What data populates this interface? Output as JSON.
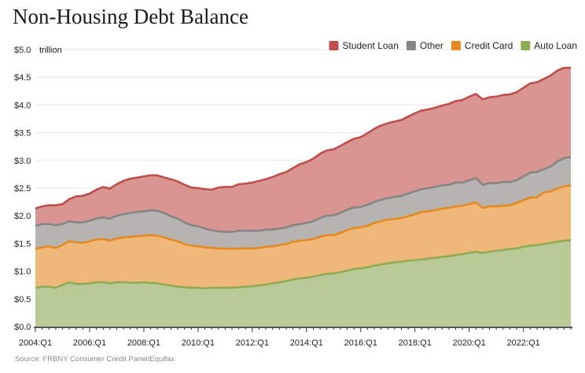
{
  "title": "Non-Housing Debt Balance",
  "source": "Source: FRBNY Consumer Credit Panel/Equifax",
  "chart_data": {
    "type": "area",
    "stacked": true,
    "unit_label": "trillion",
    "ylim": [
      0,
      5.0
    ],
    "y_ticks": [
      "$0.0",
      "$0.5",
      "$1.0",
      "$1.5",
      "$2.0",
      "$2.5",
      "$3.0",
      "$3.5",
      "$4.0",
      "$4.5",
      "$5.0"
    ],
    "y_tick_values": [
      0,
      0.5,
      1.0,
      1.5,
      2.0,
      2.5,
      3.0,
      3.5,
      4.0,
      4.5,
      5.0
    ],
    "x_ticks": [
      "2004:Q1",
      "2006:Q1",
      "2008:Q1",
      "2010:Q1",
      "2012:Q1",
      "2014:Q1",
      "2016:Q1",
      "2018:Q1",
      "2020:Q1",
      "2022:Q1"
    ],
    "x_tick_index": [
      0,
      8,
      16,
      24,
      32,
      40,
      48,
      56,
      64,
      72
    ],
    "grid": "horizontal",
    "legend_position": "top-right",
    "legend": [
      "Student Loan",
      "Other",
      "Credit Card",
      "Auto Loan"
    ],
    "colors": {
      "Auto Loan": {
        "fill": "#b9ca98",
        "line": "#8fac55"
      },
      "Credit Card": {
        "fill": "#f0b878",
        "line": "#e8891f"
      },
      "Other": {
        "fill": "#b6b4b1",
        "line": "#858585"
      },
      "Student Loan": {
        "fill": "#d99592",
        "line": "#c14d4b"
      }
    },
    "series": [
      {
        "name": "Auto Loan",
        "values": [
          0.7,
          0.72,
          0.72,
          0.7,
          0.75,
          0.8,
          0.77,
          0.77,
          0.78,
          0.8,
          0.8,
          0.78,
          0.8,
          0.8,
          0.79,
          0.79,
          0.8,
          0.79,
          0.78,
          0.76,
          0.74,
          0.72,
          0.71,
          0.7,
          0.7,
          0.69,
          0.7,
          0.7,
          0.7,
          0.7,
          0.71,
          0.72,
          0.73,
          0.74,
          0.76,
          0.78,
          0.8,
          0.82,
          0.85,
          0.87,
          0.88,
          0.9,
          0.93,
          0.95,
          0.96,
          0.98,
          1.01,
          1.04,
          1.05,
          1.07,
          1.1,
          1.12,
          1.14,
          1.16,
          1.17,
          1.19,
          1.2,
          1.21,
          1.23,
          1.24,
          1.26,
          1.27,
          1.29,
          1.31,
          1.33,
          1.35,
          1.33,
          1.35,
          1.37,
          1.38,
          1.4,
          1.41,
          1.44,
          1.46,
          1.47,
          1.49,
          1.51,
          1.53,
          1.55,
          1.56
        ]
      },
      {
        "name": "Credit Card",
        "values": [
          0.7,
          0.71,
          0.73,
          0.72,
          0.72,
          0.74,
          0.75,
          0.74,
          0.76,
          0.77,
          0.78,
          0.77,
          0.79,
          0.81,
          0.83,
          0.84,
          0.84,
          0.86,
          0.86,
          0.85,
          0.83,
          0.82,
          0.78,
          0.76,
          0.75,
          0.74,
          0.72,
          0.71,
          0.71,
          0.7,
          0.7,
          0.69,
          0.68,
          0.68,
          0.68,
          0.67,
          0.67,
          0.67,
          0.68,
          0.68,
          0.68,
          0.68,
          0.69,
          0.7,
          0.69,
          0.71,
          0.73,
          0.74,
          0.74,
          0.75,
          0.77,
          0.78,
          0.79,
          0.78,
          0.79,
          0.8,
          0.83,
          0.86,
          0.85,
          0.86,
          0.87,
          0.87,
          0.88,
          0.87,
          0.88,
          0.89,
          0.81,
          0.82,
          0.8,
          0.8,
          0.79,
          0.82,
          0.84,
          0.87,
          0.86,
          0.93,
          0.93,
          0.96,
          0.98,
          0.99
        ]
      },
      {
        "name": "Other",
        "values": [
          0.42,
          0.42,
          0.4,
          0.41,
          0.38,
          0.36,
          0.36,
          0.37,
          0.37,
          0.38,
          0.39,
          0.4,
          0.41,
          0.42,
          0.43,
          0.44,
          0.44,
          0.45,
          0.45,
          0.44,
          0.42,
          0.41,
          0.39,
          0.37,
          0.36,
          0.34,
          0.32,
          0.31,
          0.3,
          0.31,
          0.32,
          0.32,
          0.32,
          0.31,
          0.31,
          0.3,
          0.3,
          0.3,
          0.3,
          0.3,
          0.31,
          0.32,
          0.34,
          0.35,
          0.36,
          0.36,
          0.37,
          0.37,
          0.37,
          0.38,
          0.38,
          0.39,
          0.39,
          0.4,
          0.4,
          0.41,
          0.41,
          0.41,
          0.42,
          0.42,
          0.42,
          0.42,
          0.43,
          0.42,
          0.43,
          0.44,
          0.42,
          0.42,
          0.42,
          0.43,
          0.42,
          0.41,
          0.43,
          0.45,
          0.46,
          0.42,
          0.45,
          0.49,
          0.51,
          0.51
        ]
      },
      {
        "name": "Student Loan",
        "values": [
          0.31,
          0.32,
          0.34,
          0.36,
          0.36,
          0.4,
          0.47,
          0.48,
          0.49,
          0.52,
          0.55,
          0.54,
          0.57,
          0.6,
          0.62,
          0.62,
          0.63,
          0.63,
          0.64,
          0.64,
          0.67,
          0.67,
          0.68,
          0.68,
          0.69,
          0.71,
          0.73,
          0.79,
          0.81,
          0.81,
          0.84,
          0.85,
          0.87,
          0.9,
          0.91,
          0.95,
          0.98,
          1.0,
          1.03,
          1.08,
          1.1,
          1.13,
          1.16,
          1.18,
          1.19,
          1.21,
          1.22,
          1.24,
          1.26,
          1.29,
          1.32,
          1.34,
          1.35,
          1.36,
          1.37,
          1.39,
          1.41,
          1.42,
          1.42,
          1.43,
          1.44,
          1.46,
          1.47,
          1.49,
          1.51,
          1.52,
          1.54,
          1.55,
          1.56,
          1.57,
          1.58,
          1.59,
          1.6,
          1.61,
          1.62,
          1.63,
          1.64,
          1.64,
          1.63,
          1.61
        ]
      }
    ]
  }
}
